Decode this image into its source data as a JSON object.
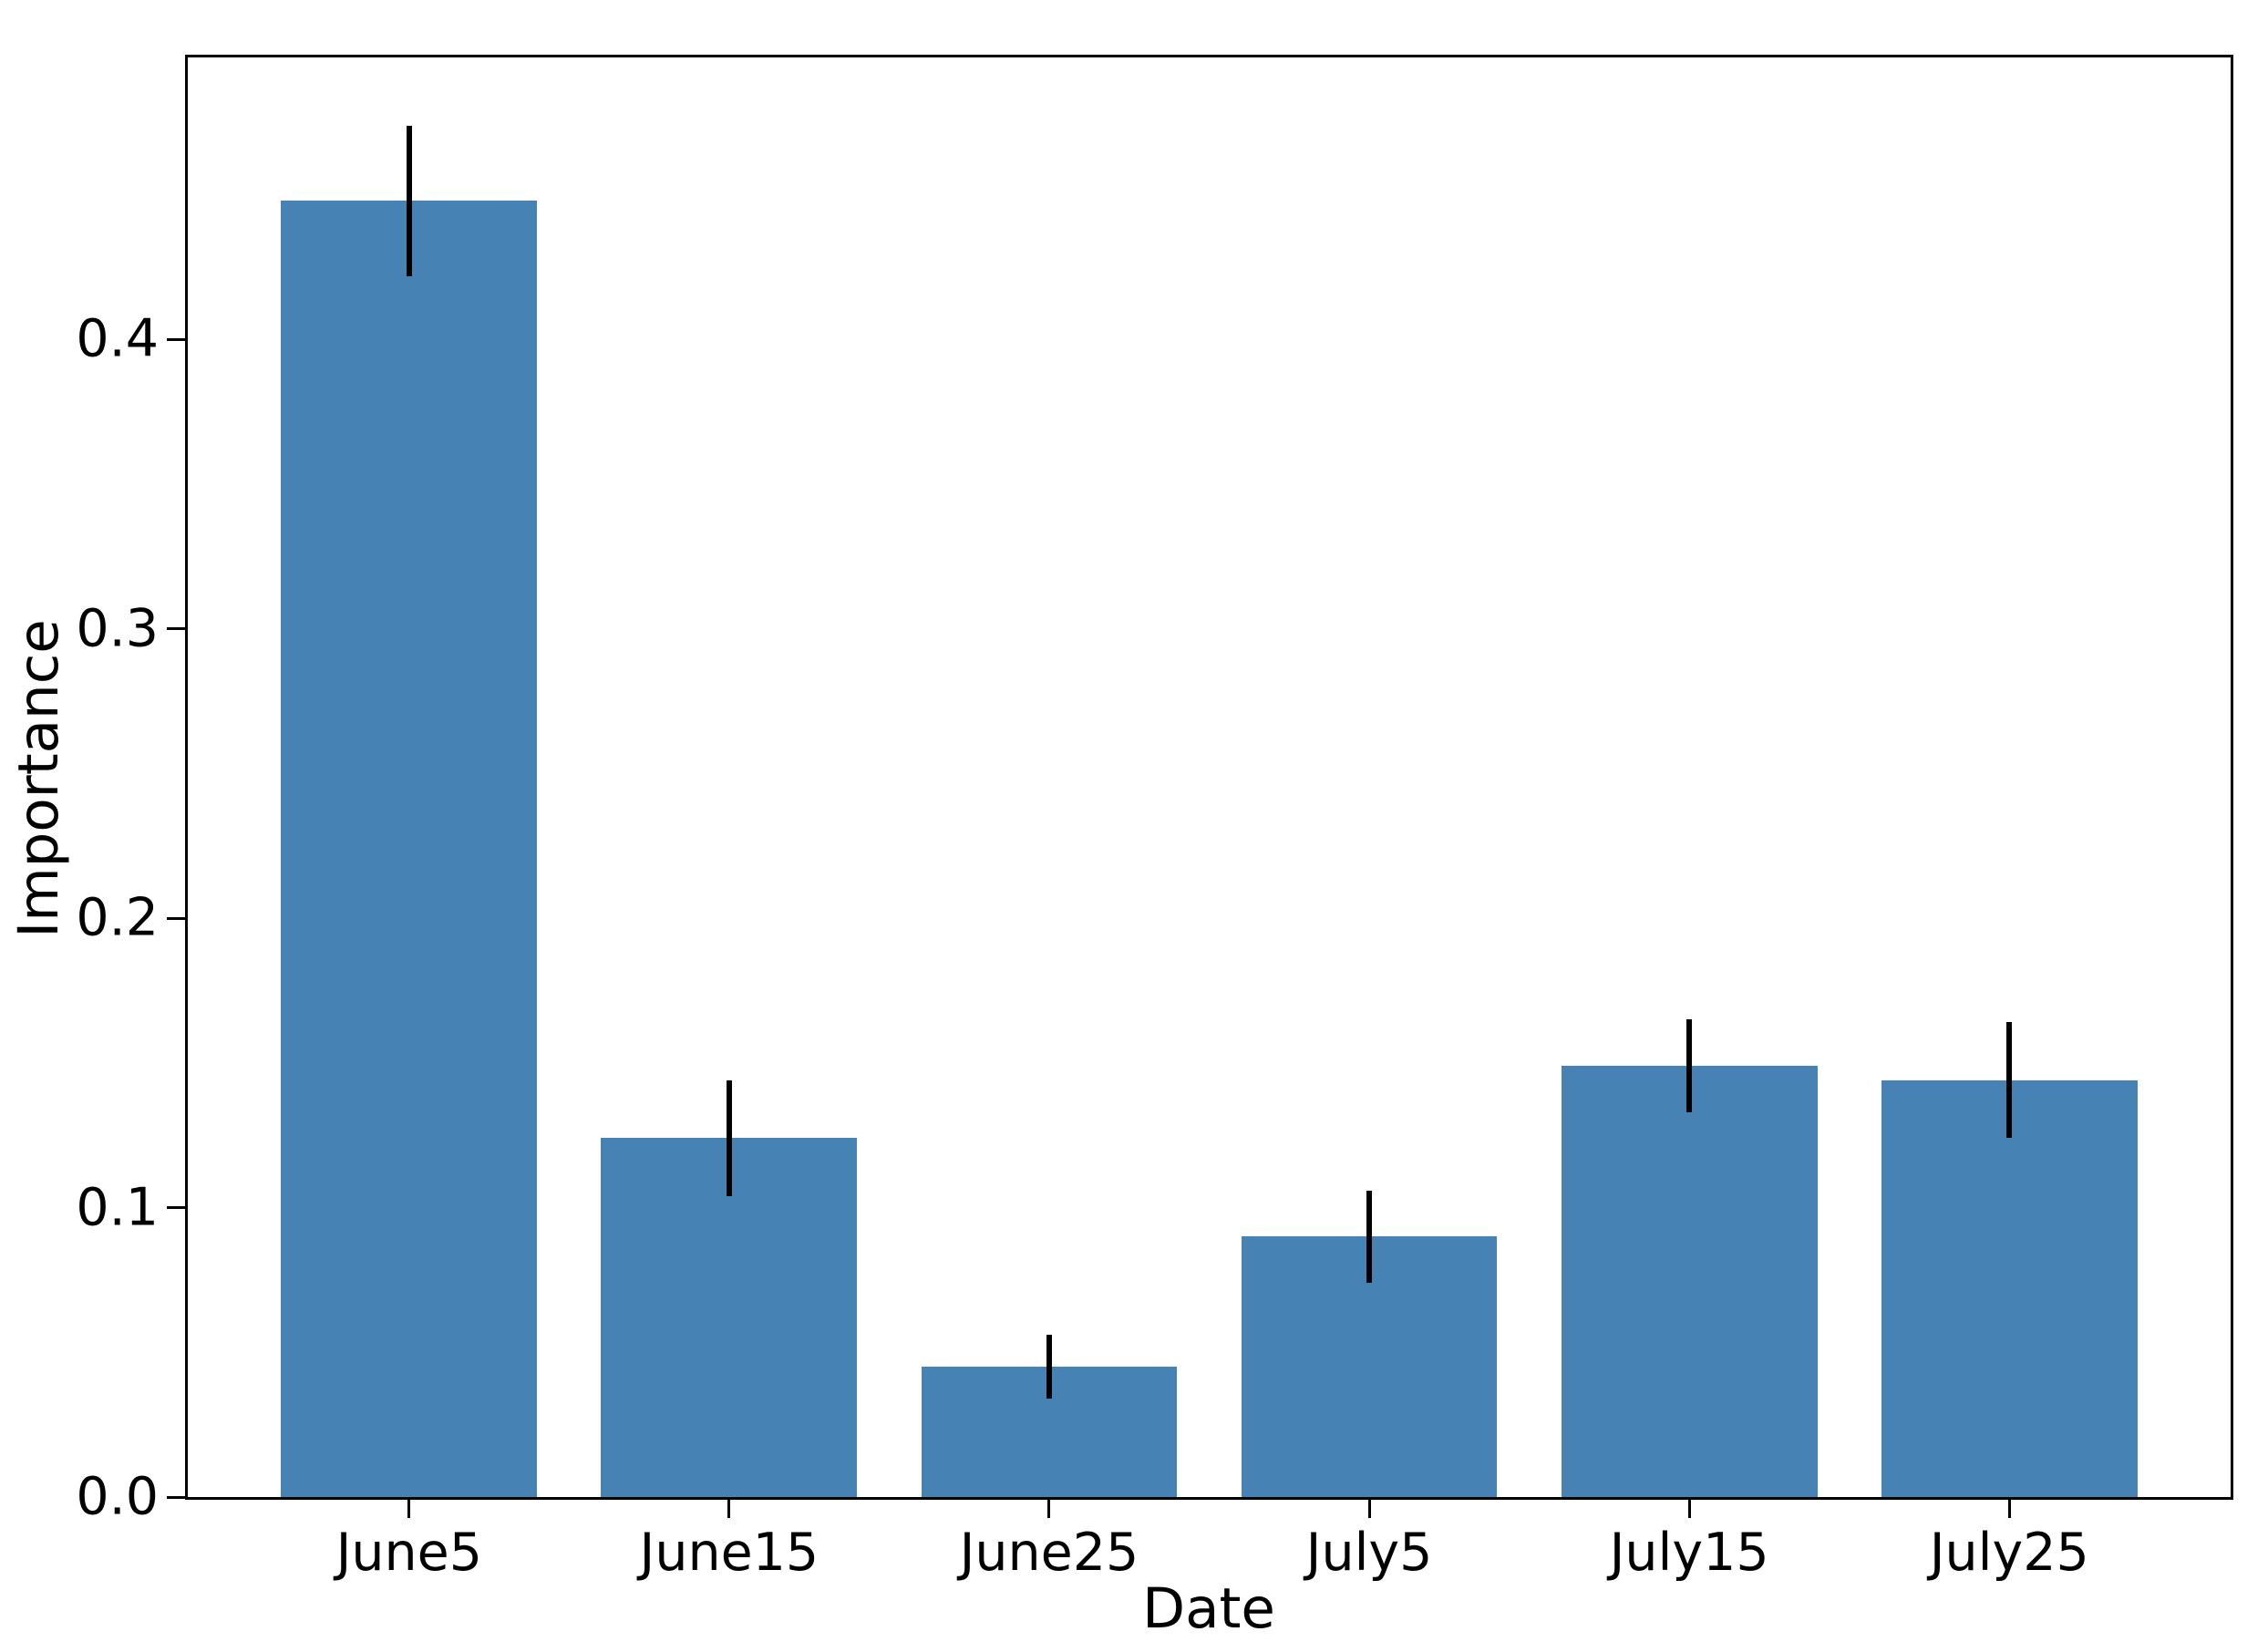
{
  "figure": {
    "background": "#ffffff"
  },
  "chart_data": {
    "type": "bar",
    "title": "",
    "xlabel": "Date",
    "ylabel": "Importance",
    "categories": [
      "June5",
      "June15",
      "June25",
      "July5",
      "July15",
      "July25"
    ],
    "values": [
      0.448,
      0.124,
      0.045,
      0.09,
      0.149,
      0.144
    ],
    "error_bars": [
      0.026,
      0.02,
      0.011,
      0.016,
      0.016,
      0.02
    ],
    "yticks": [
      0.0,
      0.1,
      0.2,
      0.3,
      0.4
    ],
    "ytick_labels": [
      "0.0",
      "0.1",
      "0.2",
      "0.3",
      "0.4"
    ],
    "ylim": [
      0,
      0.4975
    ],
    "bar_color": "#4682B4",
    "error_color": "#000000",
    "axis_color": "#000000",
    "grid": false,
    "legend": null
  }
}
